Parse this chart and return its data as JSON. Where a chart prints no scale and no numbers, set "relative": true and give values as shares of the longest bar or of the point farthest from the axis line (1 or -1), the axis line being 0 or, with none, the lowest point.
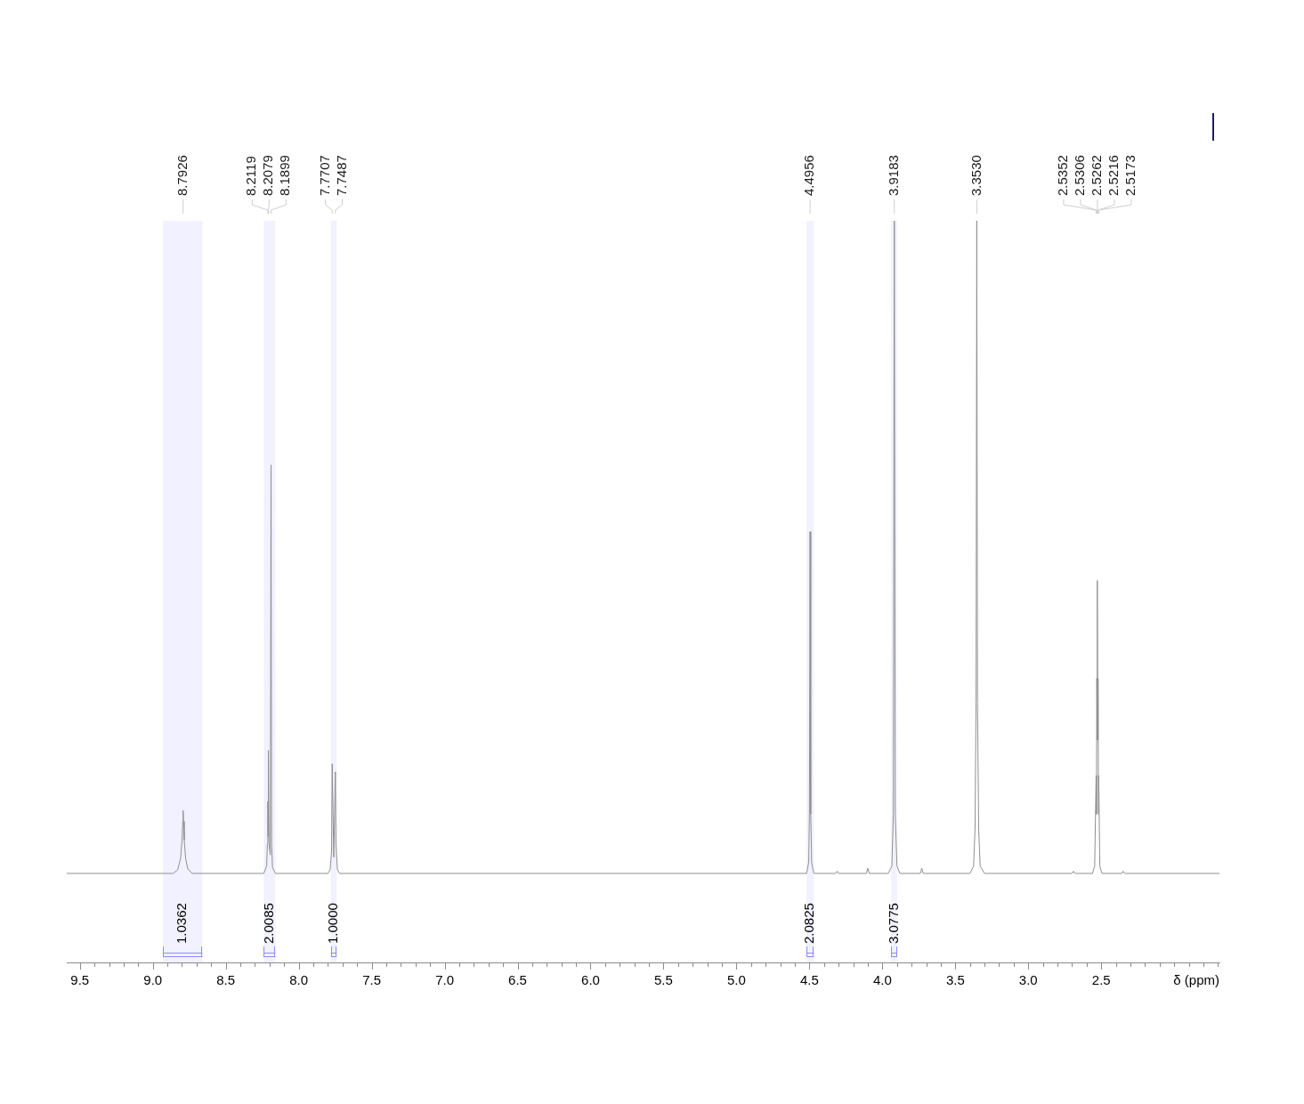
{
  "chart_data": {
    "type": "line",
    "relative": true,
    "xlabel": "δ (ppm)",
    "xlim": [
      9.59,
      1.69
    ],
    "xticks": [
      9.5,
      {
        "value": 9.4,
        "label": null
      },
      {
        "value": 9.3,
        "label": null
      },
      {
        "value": 9.2,
        "label": null
      },
      {
        "value": 9.1,
        "label": null
      },
      {
        "value": 9,
        "label": "9.0"
      },
      {
        "value": 8.9,
        "label": null
      },
      {
        "value": 8.8,
        "label": null
      },
      {
        "value": 8.7,
        "label": null
      },
      {
        "value": 8.6,
        "label": null
      },
      8.5,
      {
        "value": 8.4,
        "label": null
      },
      {
        "value": 8.3,
        "label": null
      },
      {
        "value": 8.2,
        "label": null
      },
      {
        "value": 8.1,
        "label": null
      },
      {
        "value": 8,
        "label": "8.0"
      },
      {
        "value": 7.9,
        "label": null
      },
      {
        "value": 7.8,
        "label": null
      },
      {
        "value": 7.7,
        "label": null
      },
      {
        "value": 7.6,
        "label": null
      },
      7.5,
      {
        "value": 7.4,
        "label": null
      },
      {
        "value": 7.3,
        "label": null
      },
      {
        "value": 7.2,
        "label": null
      },
      {
        "value": 7.1,
        "label": null
      },
      {
        "value": 7,
        "label": "7.0"
      },
      {
        "value": 6.9,
        "label": null
      },
      {
        "value": 6.8,
        "label": null
      },
      {
        "value": 6.7,
        "label": null
      },
      {
        "value": 6.6,
        "label": null
      },
      6.5,
      {
        "value": 6.4,
        "label": null
      },
      {
        "value": 6.3,
        "label": null
      },
      {
        "value": 6.2,
        "label": null
      },
      {
        "value": 6.1,
        "label": null
      },
      {
        "value": 6,
        "label": "6.0"
      },
      {
        "value": 5.9,
        "label": null
      },
      {
        "value": 5.8,
        "label": null
      },
      {
        "value": 5.7,
        "label": null
      },
      {
        "value": 5.6,
        "label": null
      },
      5.5,
      {
        "value": 5.4,
        "label": null
      },
      {
        "value": 5.3,
        "label": null
      },
      {
        "value": 5.2,
        "label": null
      },
      {
        "value": 5.1,
        "label": null
      },
      {
        "value": 5,
        "label": "5.0"
      },
      {
        "value": 4.9,
        "label": null
      },
      {
        "value": 4.8,
        "label": null
      },
      {
        "value": 4.7,
        "label": null
      },
      {
        "value": 4.6,
        "label": null
      },
      4.5,
      {
        "value": 4.4,
        "label": null
      },
      {
        "value": 4.3,
        "label": null
      },
      {
        "value": 4.2,
        "label": null
      },
      {
        "value": 4.1,
        "label": null
      },
      {
        "value": 4,
        "label": "4.0"
      },
      {
        "value": 3.9,
        "label": null
      },
      {
        "value": 3.8,
        "label": null
      },
      {
        "value": 3.7,
        "label": null
      },
      {
        "value": 3.6,
        "label": null
      },
      3.5,
      {
        "value": 3.4,
        "label": null
      },
      {
        "value": 3.3,
        "label": null
      },
      {
        "value": 3.2,
        "label": null
      },
      {
        "value": 3.1,
        "label": null
      },
      {
        "value": 3,
        "label": "3.0"
      },
      {
        "value": 2.9,
        "label": null
      },
      {
        "value": 2.8,
        "label": null
      },
      {
        "value": 2.7,
        "label": null
      },
      {
        "value": 2.6,
        "label": null
      },
      2.5,
      {
        "value": 2.4,
        "label": null
      },
      {
        "value": 2.3,
        "label": null
      },
      {
        "value": 2.2,
        "label": null
      },
      {
        "value": 2.1,
        "label": null
      },
      {
        "value": 2,
        "label": null
      },
      {
        "value": 1.9,
        "label": null
      },
      {
        "value": 1.8,
        "label": null
      },
      {
        "value": 1.7,
        "label": null
      }
    ],
    "x": [
      9.59,
      8.86,
      8.83,
      8.81,
      8.8,
      8.795,
      8.7926,
      8.79,
      8.785,
      8.775,
      8.76,
      8.73,
      8.24,
      8.22,
      8.215,
      8.2119,
      8.21,
      8.2079,
      8.204,
      8.195,
      8.1899,
      8.186,
      8.18,
      8.16,
      7.8,
      7.785,
      7.775,
      7.7707,
      7.76,
      7.7487,
      7.745,
      7.735,
      7.72,
      4.52,
      4.505,
      4.5,
      4.4956,
      4.491,
      4.485,
      4.47,
      4.32,
      4.31,
      4.3,
      4.11,
      4.1,
      4.09,
      3.96,
      3.935,
      3.925,
      3.9183,
      3.912,
      3.9,
      3.88,
      3.74,
      3.73,
      3.72,
      3.4,
      3.375,
      3.365,
      3.358,
      3.353,
      3.348,
      3.34,
      3.33,
      3.3,
      2.7,
      2.69,
      2.68,
      2.56,
      2.545,
      2.5352,
      2.533,
      2.5306,
      2.528,
      2.5262,
      2.524,
      2.5216,
      2.519,
      2.5173,
      2.51,
      2.495,
      2.36,
      2.35,
      2.34,
      1.69
    ],
    "values": [
      0.12,
      0.12,
      0.125,
      0.14,
      0.165,
      0.19,
      0.205,
      0.19,
      0.165,
      0.14,
      0.126,
      0.12,
      0.12,
      0.13,
      0.16,
      0.217,
      0.17,
      0.286,
      0.16,
      0.145,
      0.671,
      0.16,
      0.128,
      0.12,
      0.12,
      0.125,
      0.15,
      0.268,
      0.142,
      0.257,
      0.16,
      0.125,
      0.12,
      0.12,
      0.135,
      0.2,
      0.581,
      0.2,
      0.135,
      0.12,
      0.12,
      0.123,
      0.12,
      0.12,
      0.127,
      0.12,
      0.12,
      0.13,
      0.2,
      1,
      0.2,
      0.13,
      0.12,
      0.12,
      0.127,
      0.12,
      0.12,
      0.13,
      0.18,
      0.35,
      1,
      0.35,
      0.18,
      0.13,
      0.12,
      0.12,
      0.123,
      0.12,
      0.12,
      0.13,
      0.252,
      0.2,
      0.383,
      0.3,
      0.515,
      0.3,
      0.383,
      0.2,
      0.252,
      0.13,
      0.12,
      0.12,
      0.123,
      0.12,
      0.12
    ],
    "color": "#909090",
    "marker": "none",
    "line_style": "solid",
    "annotations": [
      {
        "text": "8.7926",
        "x": 8.7926
      },
      {
        "text": "8.2119",
        "x": 8.2119
      },
      {
        "text": "8.2079",
        "x": 8.2079
      },
      {
        "text": "8.1899",
        "x": 8.1899
      },
      {
        "text": "7.7707",
        "x": 7.7707
      },
      {
        "text": "7.7487",
        "x": 7.7487
      },
      {
        "text": "4.4956",
        "x": 4.4956
      },
      {
        "text": "3.9183",
        "x": 3.9183
      },
      {
        "text": "3.3530",
        "x": 3.353
      },
      {
        "text": "2.5352",
        "x": 2.5352
      },
      {
        "text": "2.5306",
        "x": 2.5306
      },
      {
        "text": "2.5262",
        "x": 2.5262
      },
      {
        "text": "2.5216",
        "x": 2.5216
      },
      {
        "text": "2.5173",
        "x": 2.5173
      }
    ],
    "bands": [
      {
        "axis": "x",
        "from": 8.93,
        "to": 8.66,
        "label": "1.0362",
        "color": "#8c8cff"
      },
      {
        "axis": "x",
        "from": 8.24,
        "to": 8.16,
        "label": "2.0085",
        "color": "#8c8cff"
      },
      {
        "axis": "x",
        "from": 7.78,
        "to": 7.74,
        "label": "1.0000",
        "color": "#8c8cff"
      },
      {
        "axis": "x",
        "from": 4.52,
        "to": 4.47,
        "label": "2.0825",
        "color": "#8c8cff"
      },
      {
        "axis": "x",
        "from": 3.94,
        "to": 3.9,
        "label": "3.0775",
        "color": "#8c8cff"
      }
    ]
  }
}
